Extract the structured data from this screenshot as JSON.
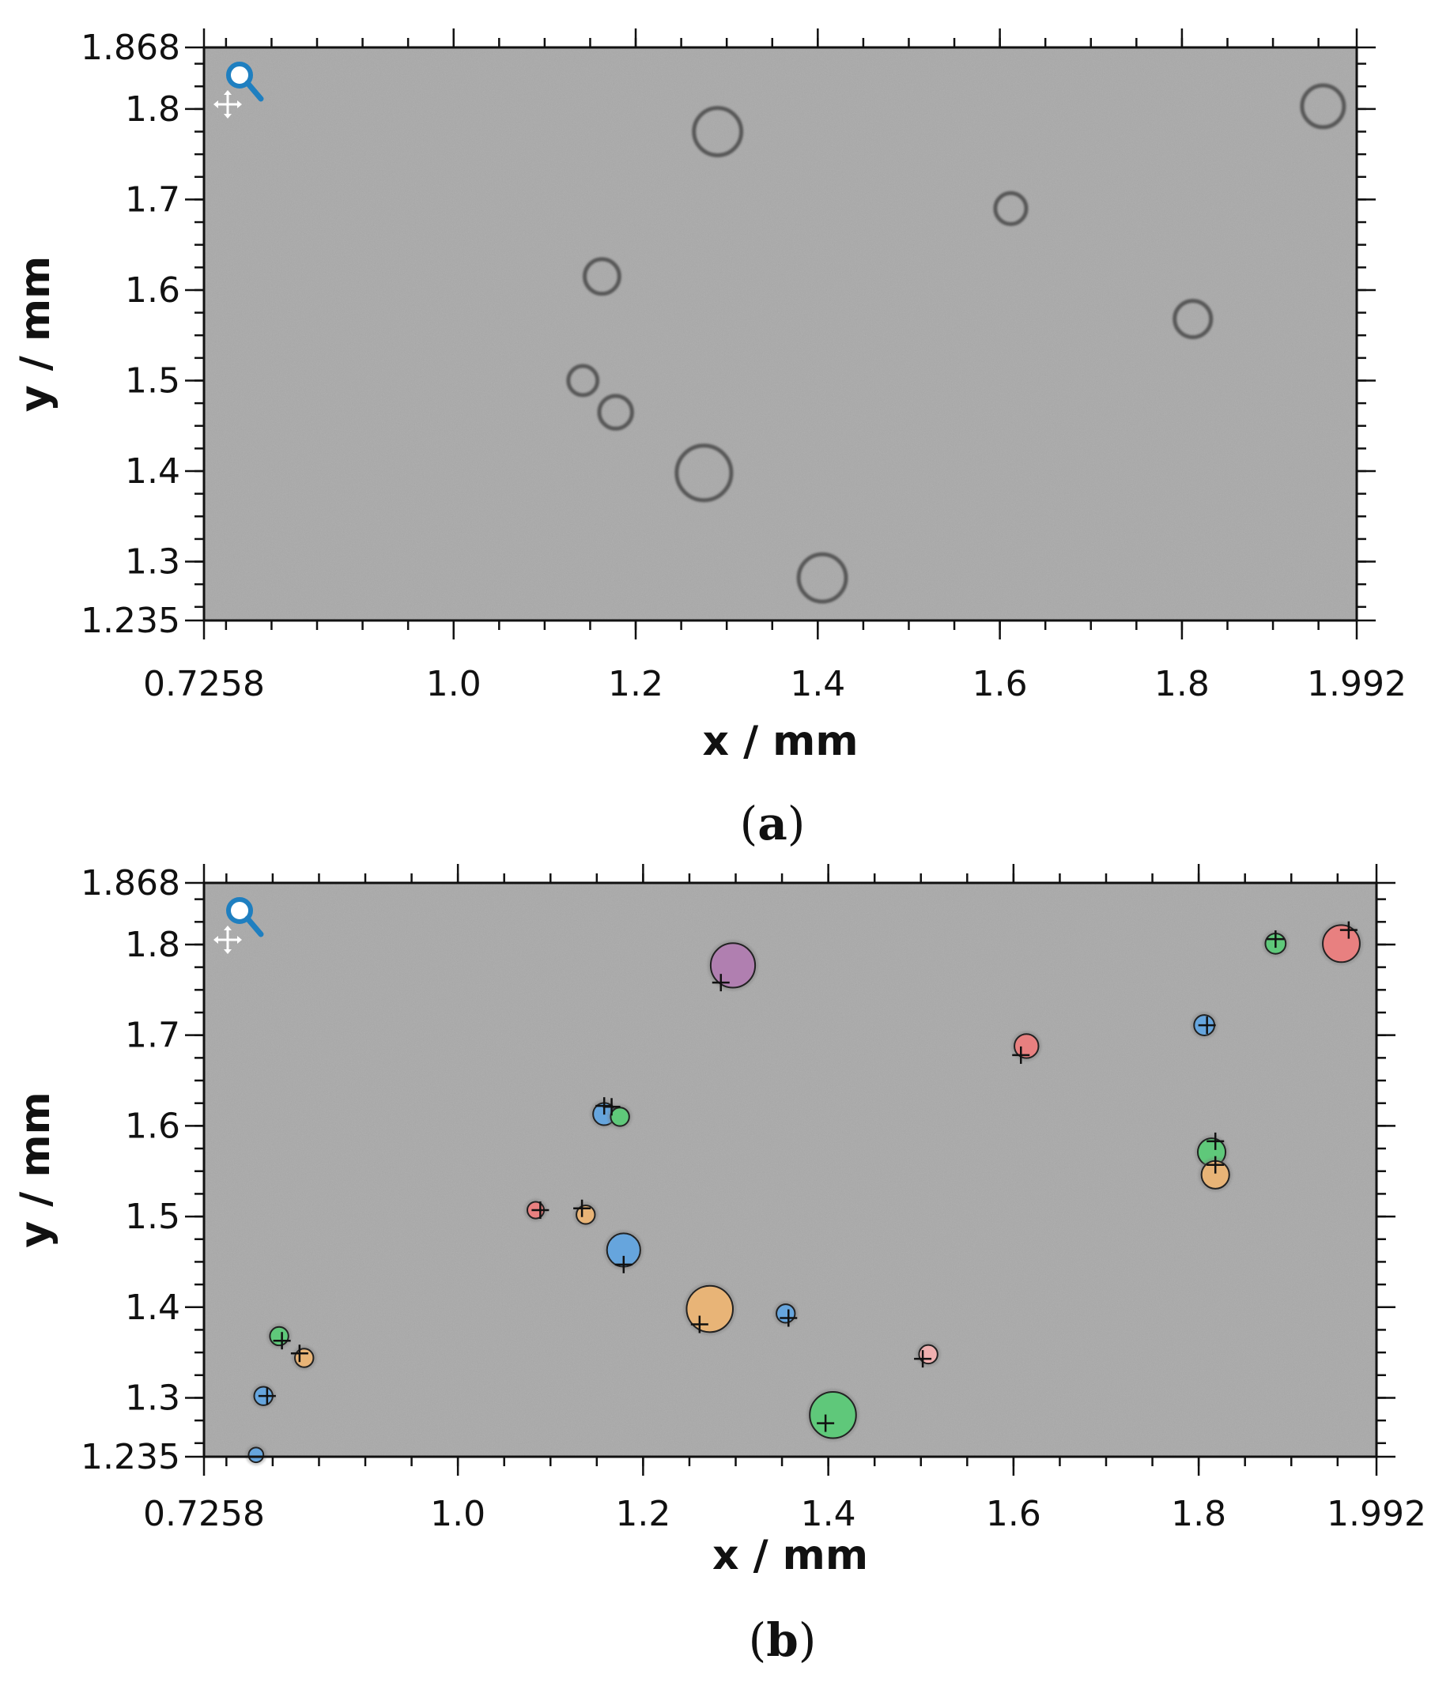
{
  "chart_data": [
    {
      "type": "image",
      "panel_label": "(a)",
      "panel_letter": "a",
      "xlabel": "x / mm",
      "ylabel": "y / mm",
      "xlim": [
        0.7258,
        1.992
      ],
      "ylim": [
        1.235,
        1.868
      ],
      "x_ticks": [
        0.7258,
        1.0,
        1.2,
        1.4,
        1.6,
        1.8,
        1.992
      ],
      "x_tick_labels": [
        "0.7258",
        "1.0",
        "1.2",
        "1.4",
        "1.6",
        "1.8",
        "1.992"
      ],
      "y_ticks": [
        1.235,
        1.3,
        1.4,
        1.5,
        1.6,
        1.7,
        1.8,
        1.868
      ],
      "y_tick_labels": [
        "1.235",
        "1.3",
        "1.4",
        "1.5",
        "1.6",
        "1.7",
        "1.8",
        "1.868"
      ],
      "background_color": "#a9a9a9",
      "toolbar_icons": [
        "magnifier-icon",
        "pan-icon"
      ],
      "rings": [
        {
          "x": 1.29,
          "y": 1.775,
          "r": 0.026
        },
        {
          "x": 1.955,
          "y": 1.803,
          "r": 0.023
        },
        {
          "x": 1.612,
          "y": 1.69,
          "r": 0.017
        },
        {
          "x": 1.163,
          "y": 1.615,
          "r": 0.019
        },
        {
          "x": 1.812,
          "y": 1.568,
          "r": 0.02
        },
        {
          "x": 1.142,
          "y": 1.5,
          "r": 0.016
        },
        {
          "x": 1.178,
          "y": 1.465,
          "r": 0.018
        },
        {
          "x": 1.275,
          "y": 1.398,
          "r": 0.03
        },
        {
          "x": 1.405,
          "y": 1.282,
          "r": 0.026
        }
      ]
    },
    {
      "type": "scatter",
      "panel_label": "(b)",
      "panel_letter": "b",
      "xlabel": "x / mm",
      "ylabel": "y / mm",
      "xlim": [
        0.7258,
        1.992
      ],
      "ylim": [
        1.235,
        1.868
      ],
      "x_ticks": [
        0.7258,
        1.0,
        1.2,
        1.4,
        1.6,
        1.8,
        1.992
      ],
      "x_tick_labels": [
        "0.7258",
        "1.0",
        "1.2",
        "1.4",
        "1.6",
        "1.8",
        "1.992"
      ],
      "y_ticks": [
        1.235,
        1.3,
        1.4,
        1.5,
        1.6,
        1.7,
        1.8,
        1.868
      ],
      "y_tick_labels": [
        "1.235",
        "1.3",
        "1.4",
        "1.5",
        "1.6",
        "1.7",
        "1.8",
        "1.868"
      ],
      "background_color": "#a9a9a9",
      "toolbar_icons": [
        "magnifier-icon",
        "pan-icon"
      ],
      "particles": [
        {
          "x": 1.297,
          "y": 1.777,
          "r": 0.024,
          "color": "#b07fb0"
        },
        {
          "x": 1.954,
          "y": 1.801,
          "r": 0.02,
          "color": "#e88080"
        },
        {
          "x": 1.883,
          "y": 1.801,
          "r": 0.011,
          "color": "#5fc87a"
        },
        {
          "x": 1.806,
          "y": 1.711,
          "r": 0.011,
          "color": "#66a5dd"
        },
        {
          "x": 1.614,
          "y": 1.688,
          "r": 0.013,
          "color": "#e88080"
        },
        {
          "x": 1.158,
          "y": 1.613,
          "r": 0.012,
          "color": "#66a5dd"
        },
        {
          "x": 1.175,
          "y": 1.61,
          "r": 0.01,
          "color": "#5fc87a"
        },
        {
          "x": 1.814,
          "y": 1.571,
          "r": 0.015,
          "color": "#5fc87a"
        },
        {
          "x": 1.818,
          "y": 1.546,
          "r": 0.015,
          "color": "#e8b477"
        },
        {
          "x": 1.084,
          "y": 1.507,
          "r": 0.009,
          "color": "#e88080"
        },
        {
          "x": 1.138,
          "y": 1.502,
          "r": 0.01,
          "color": "#e8b477"
        },
        {
          "x": 1.179,
          "y": 1.463,
          "r": 0.018,
          "color": "#66a5dd"
        },
        {
          "x": 1.272,
          "y": 1.398,
          "r": 0.025,
          "color": "#e8b477"
        },
        {
          "x": 1.354,
          "y": 1.393,
          "r": 0.01,
          "color": "#66a5dd"
        },
        {
          "x": 0.807,
          "y": 1.368,
          "r": 0.01,
          "color": "#5fc87a"
        },
        {
          "x": 0.834,
          "y": 1.344,
          "r": 0.01,
          "color": "#e8b477"
        },
        {
          "x": 1.508,
          "y": 1.348,
          "r": 0.01,
          "color": "#f0b0b0"
        },
        {
          "x": 0.79,
          "y": 1.302,
          "r": 0.01,
          "color": "#66a5dd"
        },
        {
          "x": 1.405,
          "y": 1.281,
          "r": 0.025,
          "color": "#5fc87a"
        },
        {
          "x": 0.782,
          "y": 1.237,
          "r": 0.008,
          "color": "#66a5dd"
        }
      ],
      "crosshairs": [
        {
          "x": 1.284,
          "y": 1.758
        },
        {
          "x": 1.962,
          "y": 1.816
        },
        {
          "x": 1.883,
          "y": 1.806
        },
        {
          "x": 1.809,
          "y": 1.711
        },
        {
          "x": 1.608,
          "y": 1.678
        },
        {
          "x": 1.158,
          "y": 1.622
        },
        {
          "x": 1.166,
          "y": 1.621
        },
        {
          "x": 1.818,
          "y": 1.583
        },
        {
          "x": 1.818,
          "y": 1.557
        },
        {
          "x": 1.089,
          "y": 1.507
        },
        {
          "x": 1.134,
          "y": 1.509
        },
        {
          "x": 1.179,
          "y": 1.447
        },
        {
          "x": 1.261,
          "y": 1.381
        },
        {
          "x": 1.357,
          "y": 1.388
        },
        {
          "x": 0.81,
          "y": 1.363
        },
        {
          "x": 0.829,
          "y": 1.349
        },
        {
          "x": 1.502,
          "y": 1.343
        },
        {
          "x": 0.794,
          "y": 1.302
        },
        {
          "x": 1.397,
          "y": 1.272
        }
      ]
    }
  ]
}
